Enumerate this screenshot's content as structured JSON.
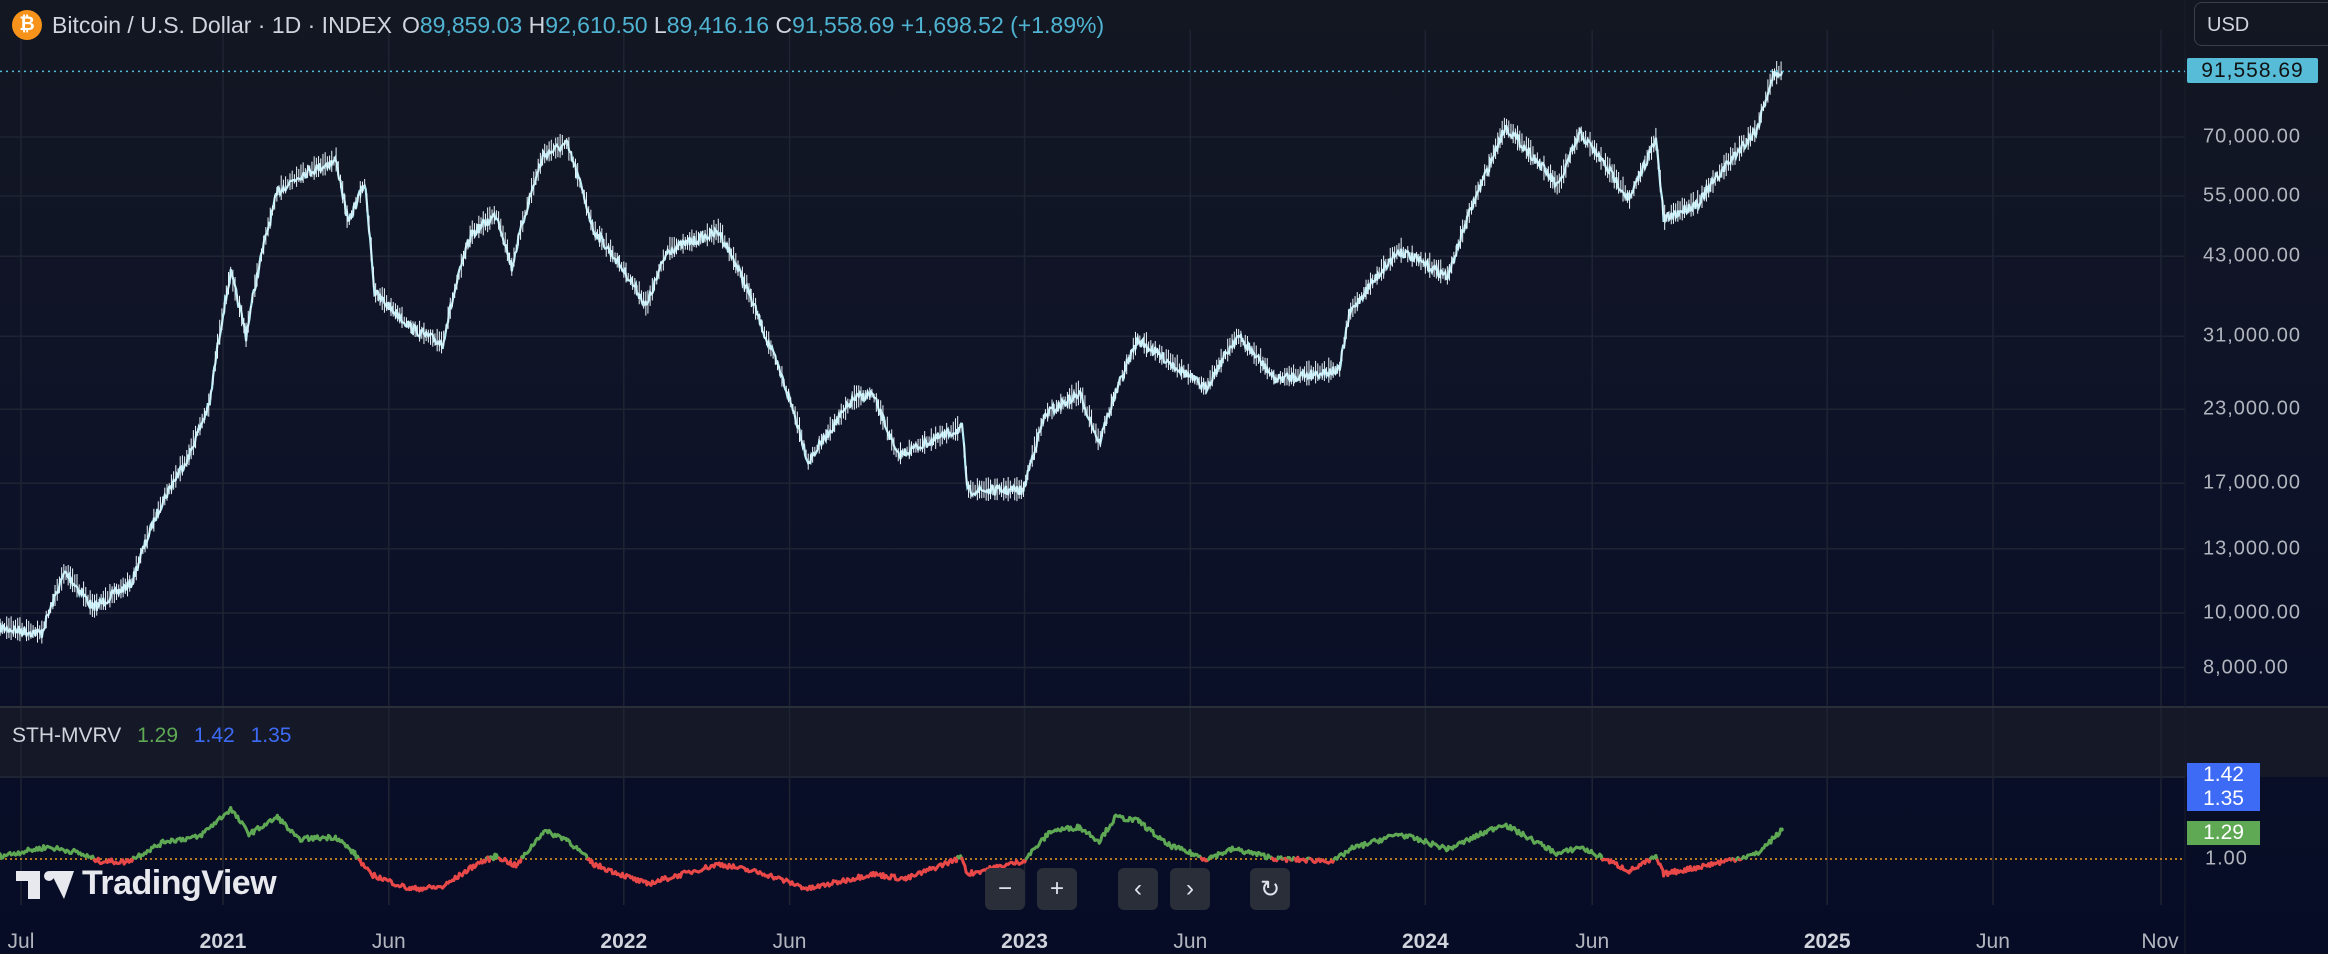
{
  "header": {
    "symbol_title": "Bitcoin / U.S. Dollar · 1D · INDEX",
    "open_label": "O",
    "open": "89,859.03",
    "high_label": "H",
    "high": "92,610.50",
    "low_label": "L",
    "low": "89,416.16",
    "close_label": "C",
    "close": "91,558.69",
    "change": "+1,698.52 (+1.89%)",
    "coin_icon": "bitcoin-icon"
  },
  "currency": "USD",
  "price_axis": {
    "scale": "log",
    "current_price": "91,558.69",
    "ticks": [
      "70,000.00",
      "55,000.00",
      "43,000.00",
      "31,000.00",
      "23,000.00",
      "17,000.00",
      "13,000.00",
      "10,000.00",
      "8,000.00"
    ]
  },
  "indicator": {
    "name": "STH-MVRV",
    "value1": "1.29",
    "value2": "1.42",
    "value3": "1.35",
    "axis_tick": "1.00",
    "colors": {
      "above": "#5fa854",
      "below": "#e84848",
      "v2": "#3d6bf5",
      "baseline": "#f0a020"
    }
  },
  "time_axis": {
    "labels": [
      "Jul",
      "2021",
      "Jun",
      "2022",
      "Jun",
      "2023",
      "Jun",
      "2024",
      "Jun",
      "2025",
      "Jun",
      "Nov"
    ]
  },
  "branding": "TradingView",
  "nav_buttons": {
    "zoom_out": "−",
    "zoom_in": "+",
    "scroll_left": "‹",
    "scroll_right": "›",
    "reset": "↻"
  },
  "colors": {
    "price_line": "#b9ecf7",
    "accent": "#56bcd8"
  },
  "chart_data": [
    {
      "type": "line",
      "title": "Bitcoin / U.S. Dollar · 1D · INDEX",
      "yscale": "log",
      "ylim": [
        7500,
        100000
      ],
      "x": [
        "2020-06-12",
        "2020-07-20",
        "2020-08-10",
        "2020-09-05",
        "2020-10-10",
        "2020-11-05",
        "2020-12-01",
        "2020-12-20",
        "2021-01-08",
        "2021-01-22",
        "2021-02-20",
        "2021-03-13",
        "2021-04-14",
        "2021-04-25",
        "2021-05-10",
        "2021-05-19",
        "2021-06-22",
        "2021-07-20",
        "2021-08-15",
        "2021-09-07",
        "2021-09-21",
        "2021-10-20",
        "2021-11-10",
        "2021-12-04",
        "2022-01-22",
        "2022-02-10",
        "2022-03-29",
        "2022-05-10",
        "2022-06-18",
        "2022-07-30",
        "2022-08-15",
        "2022-09-07",
        "2022-11-05",
        "2022-11-10",
        "2022-12-31",
        "2023-01-20",
        "2023-02-20",
        "2023-03-10",
        "2023-04-14",
        "2023-06-15",
        "2023-07-14",
        "2023-08-17",
        "2023-10-15",
        "2023-10-24",
        "2023-12-08",
        "2024-01-22",
        "2024-02-28",
        "2024-03-14",
        "2024-05-01",
        "2024-05-21",
        "2024-07-05",
        "2024-07-29",
        "2024-08-05",
        "2024-09-06",
        "2024-10-29",
        "2024-11-13",
        "2024-11-21"
      ],
      "values": [
        9400,
        9200,
        11800,
        10200,
        11300,
        15500,
        19000,
        23500,
        40000,
        31000,
        56000,
        60000,
        63500,
        49000,
        58000,
        37000,
        32000,
        30000,
        47000,
        51000,
        41000,
        65000,
        68000,
        48000,
        35000,
        44000,
        47500,
        31000,
        18500,
        24000,
        24500,
        19000,
        21300,
        16500,
        16500,
        22500,
        24500,
        20000,
        30500,
        25000,
        31000,
        26000,
        27000,
        34000,
        44000,
        39500,
        62000,
        73000,
        57000,
        71000,
        54000,
        69000,
        50000,
        53500,
        72000,
        90000,
        91558.69
      ]
    },
    {
      "type": "line",
      "title": "STH-MVRV",
      "baseline": 1.0,
      "x": [
        "2020-06-12",
        "2020-07-25",
        "2020-08-20",
        "2020-09-10",
        "2020-10-05",
        "2020-11-10",
        "2020-12-10",
        "2021-01-08",
        "2021-01-25",
        "2021-02-20",
        "2021-03-10",
        "2021-04-14",
        "2021-05-01",
        "2021-05-15",
        "2021-06-20",
        "2021-07-20",
        "2021-08-20",
        "2021-09-07",
        "2021-09-25",
        "2021-10-20",
        "2021-11-10",
        "2021-12-04",
        "2022-01-22",
        "2022-03-29",
        "2022-05-10",
        "2022-06-18",
        "2022-08-15",
        "2022-09-15",
        "2022-11-05",
        "2022-11-10",
        "2022-12-31",
        "2023-01-25",
        "2023-02-20",
        "2023-03-10",
        "2023-03-25",
        "2023-04-15",
        "2023-05-10",
        "2023-06-15",
        "2023-07-10",
        "2023-08-20",
        "2023-10-10",
        "2023-10-25",
        "2023-12-08",
        "2024-01-22",
        "2024-03-12",
        "2024-05-01",
        "2024-05-21",
        "2024-07-05",
        "2024-07-29",
        "2024-08-05",
        "2024-09-06",
        "2024-10-29",
        "2024-11-21"
      ],
      "values": [
        1.03,
        1.12,
        1.07,
        0.98,
        0.97,
        1.18,
        1.22,
        1.5,
        1.25,
        1.42,
        1.2,
        1.22,
        1.05,
        0.85,
        0.7,
        0.72,
        0.95,
        1.03,
        0.93,
        1.28,
        1.2,
        0.95,
        0.75,
        0.95,
        0.85,
        0.7,
        0.85,
        0.8,
        1.02,
        0.85,
        0.98,
        1.28,
        1.32,
        1.18,
        1.42,
        1.38,
        1.15,
        1.0,
        1.1,
        1.0,
        0.98,
        1.1,
        1.25,
        1.1,
        1.35,
        1.05,
        1.12,
        0.88,
        1.02,
        0.85,
        0.92,
        1.05,
        1.29
      ]
    }
  ]
}
